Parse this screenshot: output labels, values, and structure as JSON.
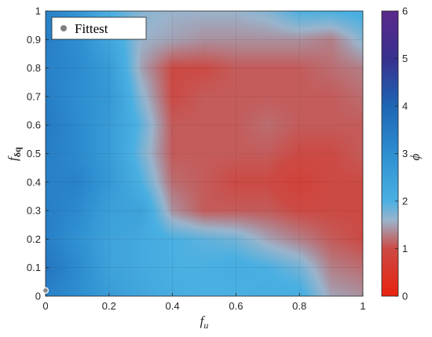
{
  "chart_data": {
    "type": "heatmap",
    "title": "",
    "xlabel_main": "f",
    "xlabel_sub": "u",
    "ylabel_main": "f",
    "ylabel_sub": "δq",
    "colorbar_label": "ϕ",
    "xlim": [
      0,
      1
    ],
    "ylim": [
      0,
      1
    ],
    "clim": [
      0,
      6
    ],
    "x_ticks": [
      "0",
      "0.2",
      "0.4",
      "0.6",
      "0.8",
      "1"
    ],
    "y_ticks": [
      "0",
      "0.1",
      "0.2",
      "0.3",
      "0.4",
      "0.5",
      "0.6",
      "0.7",
      "0.8",
      "0.9",
      "1"
    ],
    "colorbar_ticks": [
      "0",
      "1",
      "2",
      "3",
      "4",
      "5",
      "6"
    ],
    "grid": true,
    "legend_position": "top-left",
    "legend": [
      {
        "name": "Fittest",
        "marker": "circle",
        "color": "#7f7f7f"
      }
    ],
    "fittest_point": {
      "x": 0,
      "y": 0.02
    },
    "colormap": [
      {
        "v": 0,
        "color": "#e8220f"
      },
      {
        "v": 1,
        "color": "#cc4a44"
      },
      {
        "v": 1.6,
        "color": "#9ab4cc"
      },
      {
        "v": 2,
        "color": "#4ab0e2"
      },
      {
        "v": 3,
        "color": "#2e8ed0"
      },
      {
        "v": 4,
        "color": "#1e66b4"
      },
      {
        "v": 5,
        "color": "#38308e"
      },
      {
        "v": 6,
        "color": "#5a2a8c"
      }
    ],
    "grid_x": [
      0,
      0.1,
      0.2,
      0.3,
      0.4,
      0.5,
      0.6,
      0.7,
      0.8,
      0.9,
      1.0
    ],
    "grid_y": [
      0,
      0.1,
      0.2,
      0.3,
      0.4,
      0.5,
      0.6,
      0.7,
      0.8,
      0.9,
      1.0
    ],
    "z": [
      [
        3.3,
        3.0,
        2.6,
        2.3,
        2.1,
        2.0,
        2.0,
        2.1,
        2.1,
        1.5,
        1.4
      ],
      [
        3.6,
        3.1,
        2.4,
        2.2,
        2.0,
        2.0,
        2.1,
        2.0,
        1.8,
        1.3,
        1.2
      ],
      [
        3.4,
        2.9,
        2.4,
        2.2,
        2.0,
        1.9,
        1.8,
        1.5,
        1.3,
        1.1,
        1.0
      ],
      [
        3.4,
        3.1,
        2.5,
        2.4,
        1.4,
        1.1,
        1.1,
        1.1,
        1.0,
        1.0,
        1.0
      ],
      [
        3.3,
        3.3,
        2.7,
        2.0,
        1.2,
        1.1,
        1.0,
        1.0,
        0.8,
        1.0,
        1.0
      ],
      [
        3.4,
        3.1,
        2.6,
        1.8,
        1.1,
        1.1,
        1.1,
        1.1,
        1.0,
        1.0,
        1.1
      ],
      [
        3.5,
        3.1,
        2.6,
        1.9,
        1.1,
        1.1,
        1.1,
        1.2,
        1.1,
        1.1,
        1.1
      ],
      [
        3.4,
        3.0,
        2.7,
        1.7,
        1.0,
        1.1,
        1.1,
        1.1,
        1.1,
        1.1,
        1.2
      ],
      [
        3.3,
        3.1,
        2.6,
        1.5,
        1.0,
        1.0,
        1.1,
        1.1,
        1.1,
        1.2,
        1.3
      ],
      [
        3.4,
        3.0,
        2.3,
        1.6,
        1.5,
        1.4,
        1.4,
        1.4,
        1.4,
        1.3,
        1.7
      ],
      [
        3.3,
        2.8,
        2.0,
        1.7,
        1.6,
        1.6,
        1.6,
        1.7,
        2.0,
        2.0,
        2.1
      ]
    ]
  }
}
